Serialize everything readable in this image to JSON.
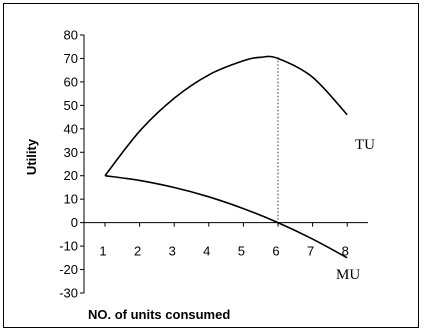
{
  "chart_data": {
    "type": "line",
    "title": "",
    "xlabel": "NO. of units consumed",
    "ylabel": "Utility",
    "x": [
      1,
      2,
      3,
      4,
      5,
      6,
      7,
      8
    ],
    "x_ticks": [
      "1",
      "2",
      "3",
      "4",
      "5",
      "6",
      "7",
      "8"
    ],
    "y_ticks": [
      "80",
      "70",
      "60",
      "50",
      "40",
      "30",
      "20",
      "10",
      "0",
      "-10",
      "-20",
      "-30"
    ],
    "ylim": [
      -30,
      80
    ],
    "xlim": [
      0.6,
      8.6
    ],
    "grid": false,
    "series": [
      {
        "name": "TU",
        "x": [
          1,
          2,
          3,
          4,
          5,
          5.5,
          6,
          7,
          8
        ],
        "values": [
          20,
          39,
          53,
          63,
          69,
          70.5,
          70,
          62,
          46
        ],
        "color": "#000000"
      },
      {
        "name": "MU",
        "x": [
          1,
          2,
          3,
          4,
          5,
          6,
          7,
          8
        ],
        "values": [
          20,
          18,
          15,
          11,
          6,
          0,
          -7,
          -15
        ],
        "color": "#000000"
      }
    ],
    "annotations": [
      {
        "type": "dotted-vertical-line",
        "x": 6,
        "y_from": 0,
        "y_to": 70.5
      }
    ]
  }
}
